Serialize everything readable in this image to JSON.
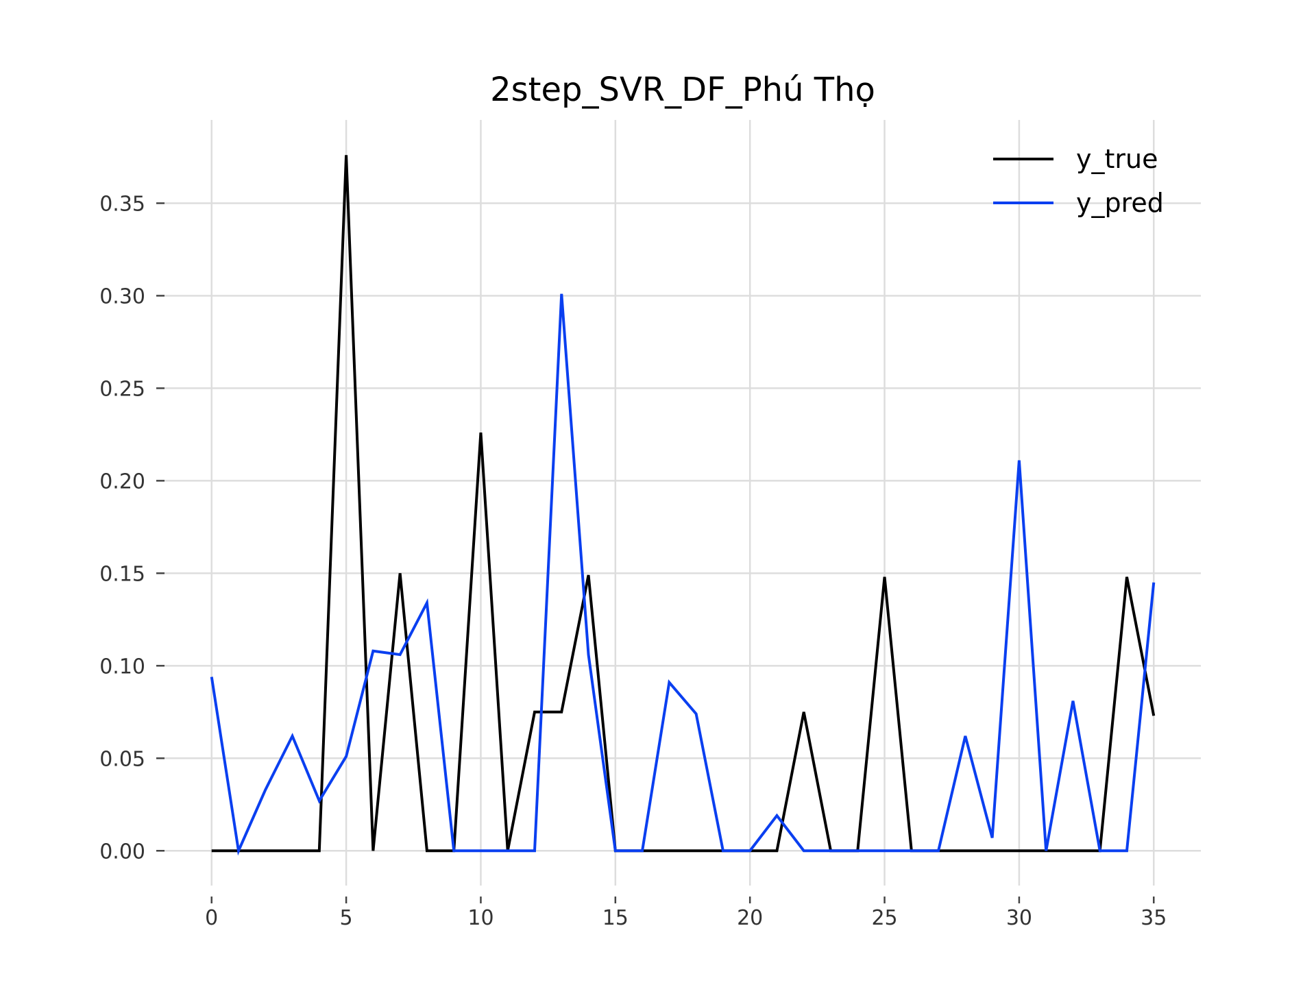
{
  "chart_data": {
    "type": "line",
    "title": "2step_SVR_DF_Phú Thọ",
    "xlabel": "",
    "ylabel": "",
    "x": [
      0,
      1,
      2,
      3,
      4,
      5,
      6,
      7,
      8,
      9,
      10,
      11,
      12,
      13,
      14,
      15,
      16,
      17,
      18,
      19,
      20,
      21,
      22,
      23,
      24,
      25,
      26,
      27,
      28,
      29,
      30,
      31,
      32,
      33,
      34,
      35
    ],
    "xlim": [
      -1.75,
      36.75
    ],
    "ylim": [
      -0.0188,
      0.395
    ],
    "xticks": [
      0,
      5,
      10,
      15,
      20,
      25,
      30,
      35
    ],
    "xtick_labels": [
      "0",
      "5",
      "10",
      "15",
      "20",
      "25",
      "30",
      "35"
    ],
    "yticks": [
      0.0,
      0.05,
      0.1,
      0.15,
      0.2,
      0.25,
      0.3,
      0.35
    ],
    "ytick_labels": [
      "0.00",
      "0.05",
      "0.10",
      "0.15",
      "0.20",
      "0.25",
      "0.30",
      "0.35"
    ],
    "grid": true,
    "legend_position": "top-right",
    "series": [
      {
        "name": "y_true",
        "color": "#000000",
        "values": [
          0,
          0,
          0,
          0,
          0,
          0.376,
          0,
          0.15,
          0,
          0,
          0.226,
          0,
          0.075,
          0.075,
          0.149,
          0,
          0,
          0,
          0,
          0,
          0,
          0,
          0.075,
          0,
          0,
          0.148,
          0,
          0,
          0,
          0,
          0,
          0,
          0,
          0,
          0.148,
          0.073
        ]
      },
      {
        "name": "y_pred",
        "color": "#0a3ff0",
        "values": [
          0.094,
          0,
          0.033,
          0.062,
          0.027,
          0.051,
          0.108,
          0.106,
          0.134,
          0,
          0,
          0,
          0,
          0.301,
          0.106,
          0,
          0,
          0.091,
          0.074,
          0,
          0,
          0.019,
          0,
          0,
          0,
          0,
          0,
          0,
          0.062,
          0.007,
          0.211,
          0,
          0.081,
          0,
          0,
          0.145
        ]
      }
    ]
  }
}
